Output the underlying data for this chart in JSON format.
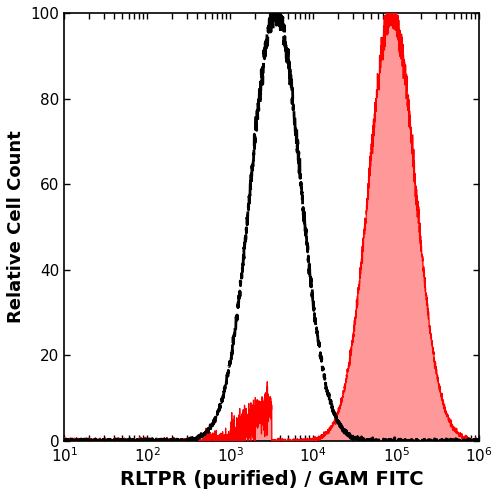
{
  "title": "",
  "xlabel": "RLTPR (purified) / GAM FITC",
  "ylabel": "Relative Cell Count",
  "xlim": [
    10,
    1000000
  ],
  "ylim": [
    0,
    100
  ],
  "yticks": [
    0,
    20,
    40,
    60,
    80,
    100
  ],
  "xlabel_fontsize": 14,
  "ylabel_fontsize": 13,
  "tick_fontsize": 11,
  "red_fill_color": "#FF9999",
  "red_line_color": "#FF0000",
  "black_dash_color": "#000000",
  "background_color": "#FFFFFF",
  "black_mu_log": 3.55,
  "black_sigma_log": 0.3,
  "black_peak_height": 100,
  "red_mu_log": 4.95,
  "red_sigma_log": 0.28,
  "red_peak_height": 100,
  "noise_seed": 42
}
